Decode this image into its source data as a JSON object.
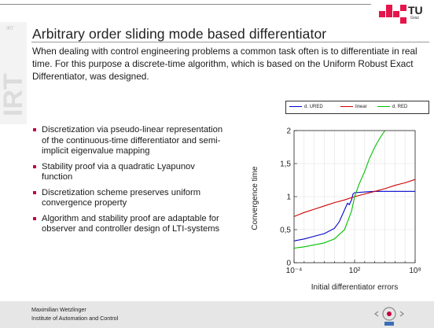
{
  "logo": {
    "text": "TU",
    "subtext": "Graz"
  },
  "watermark": {
    "text": "IRT",
    "small": "IRT"
  },
  "slide": {
    "title": "Arbitrary order sliding mode based differentiator",
    "intro": "When dealing with control engineering problems a common task often is to differentiate in real time. For this purpose a discrete-time algorithm, which is based on the Uniform Robust Exact Differentiator, was designed."
  },
  "bullets": [
    {
      "text": "Discretization via pseudo-linear representation of the continuous-time differentiator and semi-implicit eigenvalue mapping"
    },
    {
      "text": "Stability proof via a quadratic Lyapunov function"
    },
    {
      "text": "Discretization scheme preserves uniform convergence property"
    },
    {
      "text": "Algorithm and stability proof are adaptable for observer and controller design of LTI-systems"
    }
  ],
  "legend": {
    "entries": [
      {
        "label": "d. URED",
        "color": "#0000cc"
      },
      {
        "label": "linear",
        "color": "#cc0000"
      },
      {
        "label": "d. RED",
        "color": "#00c000"
      }
    ]
  },
  "chart_data": {
    "type": "line",
    "title": "",
    "xlabel": "Initial differentiator errors",
    "ylabel": "Convergence time",
    "xscale": "log",
    "xlim": [
      0.0001,
      100000000
    ],
    "ylim": [
      0,
      2
    ],
    "xtick_labels": [
      "10⁻⁴",
      "10²",
      "10⁸"
    ],
    "ytick_labels": [
      "0",
      "0,5",
      "1",
      "1,5",
      "2"
    ],
    "yticks": [
      0,
      0.5,
      1,
      1.5,
      2
    ],
    "legend_placement": "top",
    "series": [
      {
        "name": "d. URED",
        "color": "#0000cc",
        "x": [
          0.0001,
          0.001,
          0.01,
          0.1,
          1,
          3,
          10,
          20,
          30,
          50,
          70,
          100,
          1000,
          10000,
          100000,
          100000000
        ],
        "y": [
          0.33,
          0.36,
          0.4,
          0.44,
          0.52,
          0.62,
          0.8,
          0.9,
          0.88,
          0.95,
          1.04,
          1.06,
          1.07,
          1.08,
          1.08,
          1.08
        ]
      },
      {
        "name": "linear",
        "color": "#cc0000",
        "x": [
          0.0001,
          0.001,
          0.01,
          0.1,
          1,
          10,
          100,
          1000,
          10000,
          100000,
          1000000,
          10000000,
          100000000
        ],
        "y": [
          0.7,
          0.76,
          0.81,
          0.86,
          0.91,
          0.95,
          1.0,
          1.04,
          1.08,
          1.12,
          1.17,
          1.21,
          1.26
        ]
      },
      {
        "name": "d. RED",
        "color": "#00c000",
        "x": [
          0.0001,
          0.001,
          0.01,
          0.1,
          1,
          10,
          50,
          100,
          300,
          1000,
          3000,
          10000,
          30000,
          100000
        ],
        "y": [
          0.22,
          0.24,
          0.27,
          0.3,
          0.36,
          0.5,
          0.78,
          1.0,
          1.2,
          1.38,
          1.58,
          1.75,
          1.88,
          2.0
        ]
      }
    ]
  },
  "footer": {
    "name": "Maximilian Wetzlinger",
    "institute": "Institute of Automation and Control"
  }
}
